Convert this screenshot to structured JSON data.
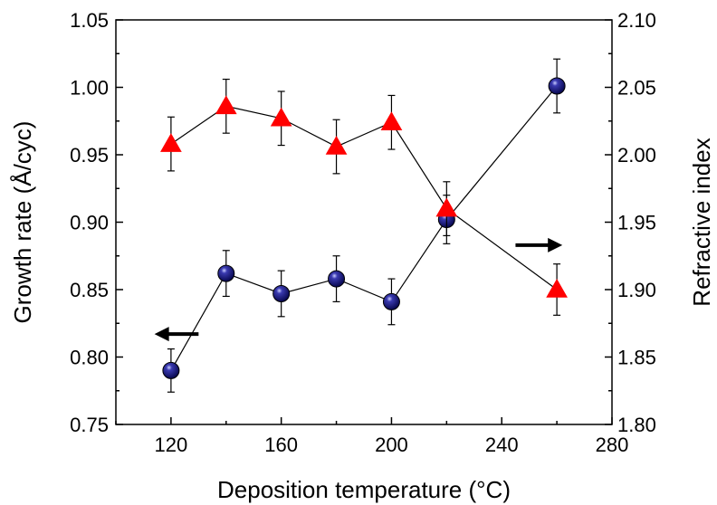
{
  "chart_data": {
    "type": "scatter",
    "title": "",
    "xlabel": "Deposition temperature (°C)",
    "ylabel": "Growth rate (Å/cyc)",
    "y2label": "Refractive index",
    "xlim": [
      100,
      280
    ],
    "ylim": [
      0.75,
      1.05
    ],
    "y2lim": [
      1.8,
      2.1
    ],
    "xticks": [
      120,
      160,
      200,
      240,
      280
    ],
    "yticks": [
      "0.75",
      "0.80",
      "0.85",
      "0.90",
      "0.95",
      "1.00",
      "1.05"
    ],
    "y2ticks": [
      "1.80",
      "1.85",
      "1.90",
      "1.95",
      "2.00",
      "2.05",
      "2.10"
    ],
    "grid": false,
    "legend": "none",
    "series": [
      {
        "axis": "left",
        "marker": "sphere",
        "color": "#101070",
        "points": [
          {
            "x": 120,
            "y": 0.79,
            "err": 0.016
          },
          {
            "x": 140,
            "y": 0.862,
            "err": 0.017
          },
          {
            "x": 160,
            "y": 0.847,
            "err": 0.017
          },
          {
            "x": 180,
            "y": 0.858,
            "err": 0.017
          },
          {
            "x": 200,
            "y": 0.841,
            "err": 0.017
          },
          {
            "x": 220,
            "y": 0.902,
            "err": 0.018
          },
          {
            "x": 260,
            "y": 1.001,
            "err": 0.02
          }
        ]
      },
      {
        "axis": "right",
        "marker": "triangle",
        "color": "#ff0000",
        "points": [
          {
            "x": 120,
            "y": 2.008,
            "err": 0.02
          },
          {
            "x": 140,
            "y": 2.036,
            "err": 0.02
          },
          {
            "x": 160,
            "y": 2.027,
            "err": 0.02
          },
          {
            "x": 180,
            "y": 2.006,
            "err": 0.02
          },
          {
            "x": 200,
            "y": 2.024,
            "err": 0.02
          },
          {
            "x": 220,
            "y": 1.96,
            "err": 0.02
          },
          {
            "x": 260,
            "y": 1.9,
            "err": 0.019
          }
        ]
      }
    ],
    "annotations": [
      {
        "type": "arrow",
        "direction": "left",
        "points_to_axis": "left"
      },
      {
        "type": "arrow",
        "direction": "right",
        "points_to_axis": "right"
      }
    ]
  }
}
